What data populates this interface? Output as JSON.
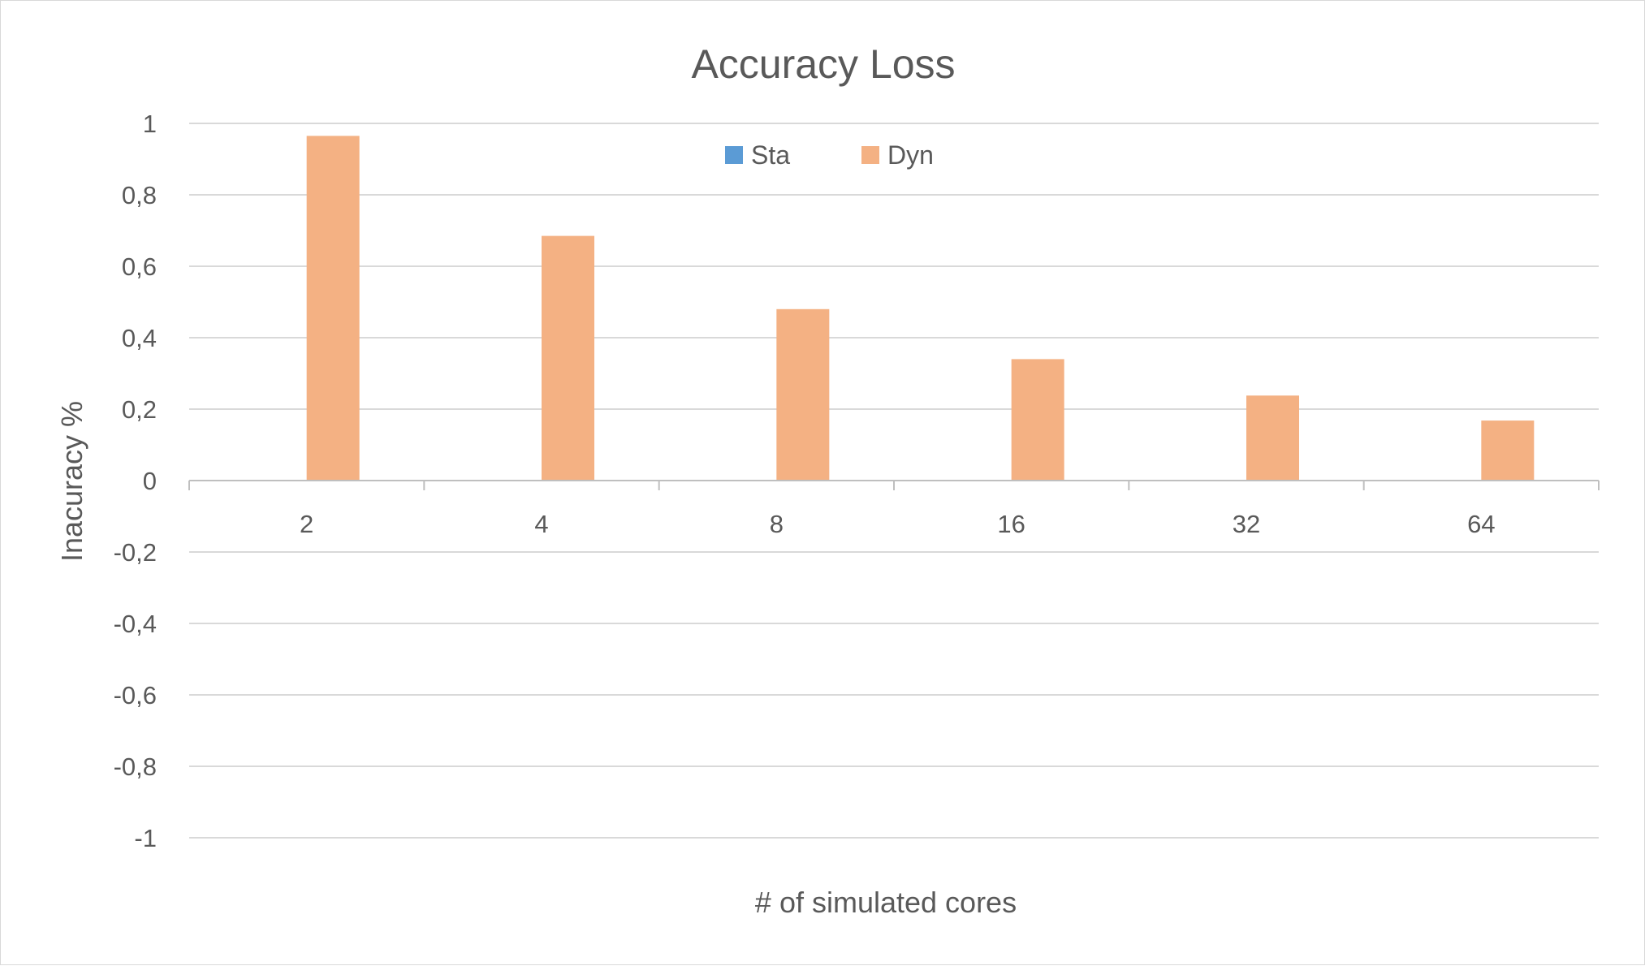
{
  "chart_data": {
    "type": "bar",
    "title": "Accuracy Loss",
    "xlabel": "# of simulated cores",
    "ylabel": "Inacuracy %",
    "categories": [
      "2",
      "4",
      "8",
      "16",
      "32",
      "64"
    ],
    "series": [
      {
        "name": "Sta",
        "color": "#5b9bd5",
        "values": [
          0,
          0,
          0,
          0,
          0,
          0
        ]
      },
      {
        "name": "Dyn",
        "color": "#f4b183",
        "values": [
          0.965,
          0.685,
          0.48,
          0.34,
          0.238,
          0.168
        ]
      }
    ],
    "ylim": [
      -1,
      1
    ],
    "yticks": [
      1,
      0.8,
      0.6,
      0.4,
      0.2,
      0,
      -0.2,
      -0.4,
      -0.6,
      -0.8,
      -1
    ],
    "ytick_labels": [
      "1",
      "0,8",
      "0,6",
      "0,4",
      "0,2",
      "0",
      "-0,2",
      "-0,4",
      "-0,6",
      "-0,8",
      "-1"
    ],
    "grid": true,
    "legend_position": "top-center",
    "colors": {
      "gridline": "#d9d9d9",
      "axis": "#bfbfbf",
      "text": "#595959"
    }
  }
}
